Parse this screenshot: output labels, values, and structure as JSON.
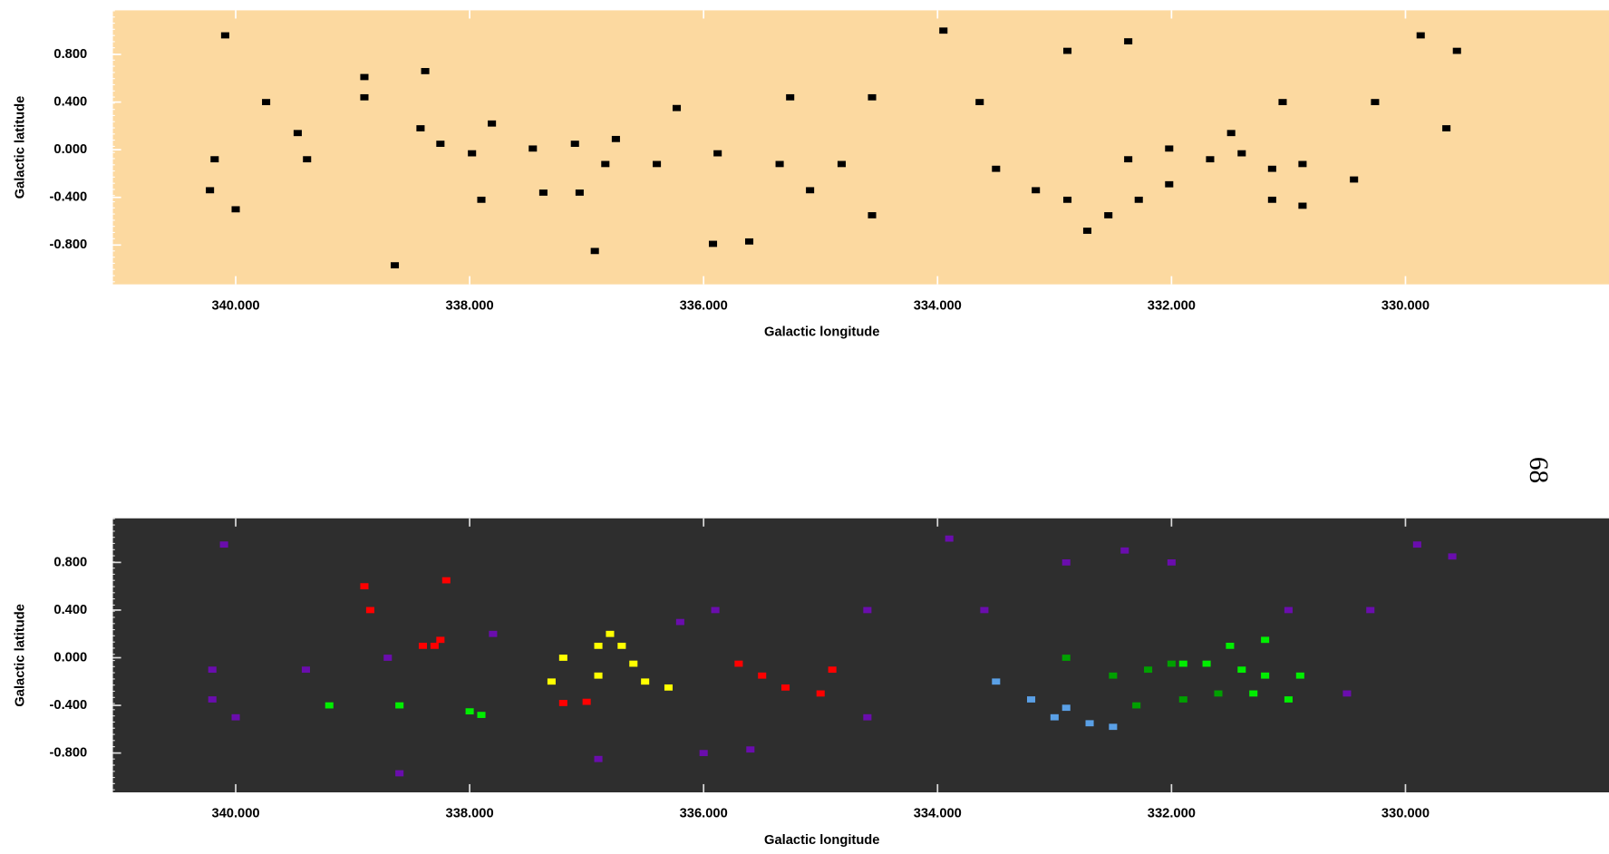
{
  "page_number": "68",
  "chart_data": [
    {
      "type": "scatter",
      "background": "#fcd9a0",
      "xlabel": "Galactic longitude",
      "ylabel": "Galactic latitude",
      "xlim": [
        341.05,
        328.26
      ],
      "ylim": [
        -1.13,
        1.17
      ],
      "xticks": [
        {
          "value": 340,
          "label": "340.000"
        },
        {
          "value": 338,
          "label": "338.000"
        },
        {
          "value": 336,
          "label": "336.000"
        },
        {
          "value": 334,
          "label": "334.000"
        },
        {
          "value": 332,
          "label": "332.000"
        },
        {
          "value": 330,
          "label": "330.000"
        }
      ],
      "yticks": [
        {
          "value": 0.8,
          "label": "0.800"
        },
        {
          "value": 0.4,
          "label": "0.400"
        },
        {
          "value": 0,
          "label": "0.000"
        },
        {
          "value": -0.4,
          "label": "-0.400"
        },
        {
          "value": -0.8,
          "label": "-0.800"
        }
      ],
      "series": [
        {
          "color": "#000000",
          "x": [
            340.18,
            340.22,
            340.0,
            338.9,
            338.9,
            338.42,
            338.25,
            337.9,
            337.98,
            337.46,
            337.1,
            336.75,
            336.84,
            336.4,
            337.06,
            337.37,
            335.92,
            335.88,
            335.35,
            335.09,
            334.82,
            335.26,
            334.56,
            333.64,
            333.5,
            333.16,
            332.89,
            332.54,
            332.28,
            332.02,
            332.37,
            332.02,
            331.67,
            331.4,
            331.14,
            330.88,
            331.14,
            330.88,
            331.49,
            331.05,
            332.89,
            332.37,
            329.87,
            329.56,
            333.95,
            340.09,
            338.38,
            339.39,
            339.47,
            334.56,
            330.44,
            330.26,
            338.64,
            336.93,
            335.61,
            332.72,
            329.65,
            336.23,
            337.81,
            339.74
          ],
          "values": [
            -0.08,
            -0.34,
            -0.5,
            0.61,
            0.44,
            0.18,
            0.05,
            -0.42,
            -0.03,
            0.01,
            0.05,
            0.09,
            -0.12,
            -0.12,
            -0.36,
            -0.36,
            -0.79,
            -0.03,
            -0.12,
            -0.34,
            -0.12,
            0.44,
            0.44,
            0.4,
            -0.16,
            -0.34,
            -0.42,
            -0.55,
            -0.42,
            -0.29,
            -0.08,
            0.01,
            -0.08,
            -0.03,
            -0.16,
            -0.12,
            -0.42,
            -0.47,
            0.14,
            0.4,
            0.83,
            0.91,
            0.96,
            0.83,
            1.0,
            0.96,
            0.66,
            -0.08,
            0.14,
            -0.55,
            -0.25,
            0.4,
            -0.97,
            -0.85,
            -0.77,
            -0.68,
            0.18,
            0.35,
            0.22,
            0.4
          ]
        }
      ]
    },
    {
      "type": "scatter",
      "background": "#2e2e2e",
      "xlabel": "Galactic longitude",
      "ylabel": "Galactic latitude",
      "xlim": [
        341.05,
        328.26
      ],
      "ylim": [
        -1.13,
        1.17
      ],
      "xticks": [
        {
          "value": 340,
          "label": "340.000"
        },
        {
          "value": 338,
          "label": "338.000"
        },
        {
          "value": 336,
          "label": "336.000"
        },
        {
          "value": 334,
          "label": "334.000"
        },
        {
          "value": 332,
          "label": "332.000"
        },
        {
          "value": 330,
          "label": "330.000"
        }
      ],
      "yticks": [
        {
          "value": 0.8,
          "label": "0.800"
        },
        {
          "value": 0.4,
          "label": "0.400"
        },
        {
          "value": 0,
          "label": "0.000"
        },
        {
          "value": -0.4,
          "label": "-0.400"
        },
        {
          "value": -0.8,
          "label": "-0.800"
        }
      ],
      "series": [
        {
          "color": "#6a0dad",
          "x": [
            340.2,
            340.2,
            340.0,
            340.1,
            339.4,
            338.7,
            337.8,
            336.0,
            335.9,
            334.6,
            333.6,
            332.9,
            332.4,
            329.9,
            329.6,
            330.3,
            330.5,
            333.9,
            338.6,
            336.9,
            335.6,
            334.6,
            336.2,
            331.0,
            332.0
          ],
          "values": [
            -0.1,
            -0.35,
            -0.5,
            0.95,
            -0.1,
            0.0,
            0.2,
            -0.8,
            0.4,
            0.4,
            0.4,
            0.8,
            0.9,
            0.95,
            0.85,
            0.4,
            -0.3,
            1.0,
            -0.97,
            -0.85,
            -0.77,
            -0.5,
            0.3,
            0.4,
            0.8
          ]
        },
        {
          "color": "#ff0000",
          "x": [
            338.9,
            338.85,
            338.3,
            338.4,
            338.25,
            338.2,
            337.2,
            337.0,
            335.5,
            335.3,
            335.0,
            335.7,
            334.9
          ],
          "values": [
            0.6,
            0.4,
            0.1,
            0.1,
            0.15,
            0.65,
            -0.38,
            -0.37,
            -0.15,
            -0.25,
            -0.3,
            -0.05,
            -0.1
          ]
        },
        {
          "color": "#ffff00",
          "x": [
            337.2,
            336.9,
            336.7,
            336.6,
            336.9,
            336.5,
            336.3,
            337.3,
            336.8
          ],
          "values": [
            0.0,
            0.1,
            0.1,
            -0.05,
            -0.15,
            -0.2,
            -0.25,
            -0.2,
            0.2
          ]
        },
        {
          "color": "#00ee00",
          "x": [
            339.2,
            338.6,
            338.0,
            337.9,
            331.7,
            331.4,
            331.2,
            330.9,
            331.0,
            331.3,
            331.5,
            331.2,
            331.9
          ],
          "values": [
            -0.4,
            -0.4,
            -0.45,
            -0.48,
            -0.05,
            -0.1,
            -0.15,
            -0.15,
            -0.35,
            -0.3,
            0.1,
            0.15,
            -0.05
          ]
        },
        {
          "color": "#00a000",
          "x": [
            332.9,
            332.5,
            332.2,
            332.0,
            332.3,
            331.9,
            331.6
          ],
          "values": [
            0.0,
            -0.15,
            -0.1,
            -0.05,
            -0.4,
            -0.35,
            -0.3
          ]
        },
        {
          "color": "#5aa0e6",
          "x": [
            333.5,
            333.2,
            332.9,
            332.7,
            332.5,
            333.0
          ],
          "values": [
            -0.2,
            -0.35,
            -0.42,
            -0.55,
            -0.58,
            -0.5
          ]
        }
      ]
    }
  ]
}
